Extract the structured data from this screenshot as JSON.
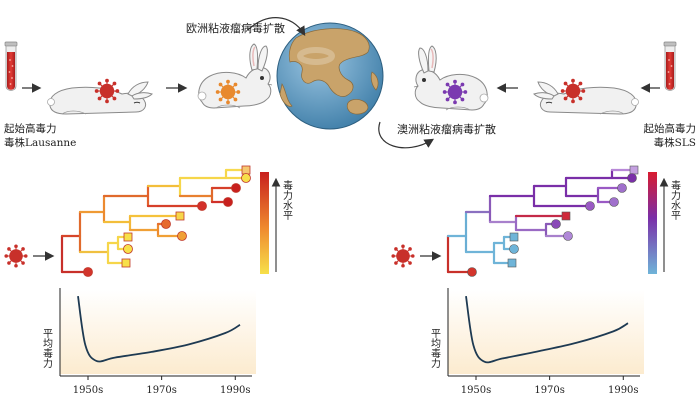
{
  "labels": {
    "europe_spread": "欧洲粘液瘤病毒扩散",
    "australia_spread": "澳洲粘液瘤病毒扩散",
    "left_strain_line1": "起始高毒力",
    "left_strain_line2": "毒株Lausanne",
    "right_strain_line1": "起始高毒力",
    "right_strain_line2": "毒株SLS",
    "virulence_level": "毒力水平",
    "mean_virulence": "平均毒力"
  },
  "colors": {
    "virus_red": "#c8302a",
    "virus_orange": "#e8892e",
    "virus_purple": "#7b3ab0",
    "tube_red": "#c62a2a",
    "curve": "#1e3a52",
    "left_scale_top": "#c8201e",
    "left_scale_bottom": "#f7e04a",
    "right_scale_top": "#d81b30",
    "right_scale_mid": "#7a2fa8",
    "right_scale_bottom": "#6fb4d8",
    "ocean": "#6aa3c8",
    "land": "#c9a36a"
  },
  "chart_data": [
    {
      "type": "line",
      "panel": "left",
      "ylabel": "平均毒力",
      "xticks": [
        "1950s",
        "1970s",
        "1990s"
      ],
      "x": [
        1950,
        1952,
        1955,
        1960,
        1970,
        1980,
        1990,
        1994
      ],
      "y": [
        0.95,
        0.35,
        0.16,
        0.2,
        0.27,
        0.36,
        0.5,
        0.6
      ]
    },
    {
      "type": "line",
      "panel": "right",
      "ylabel": "平均毒力",
      "xticks": [
        "1950s",
        "1970s",
        "1990s"
      ],
      "x": [
        1950,
        1952,
        1955,
        1960,
        1970,
        1980,
        1990,
        1994
      ],
      "y": [
        0.95,
        0.35,
        0.15,
        0.19,
        0.28,
        0.38,
        0.52,
        0.62
      ]
    }
  ]
}
